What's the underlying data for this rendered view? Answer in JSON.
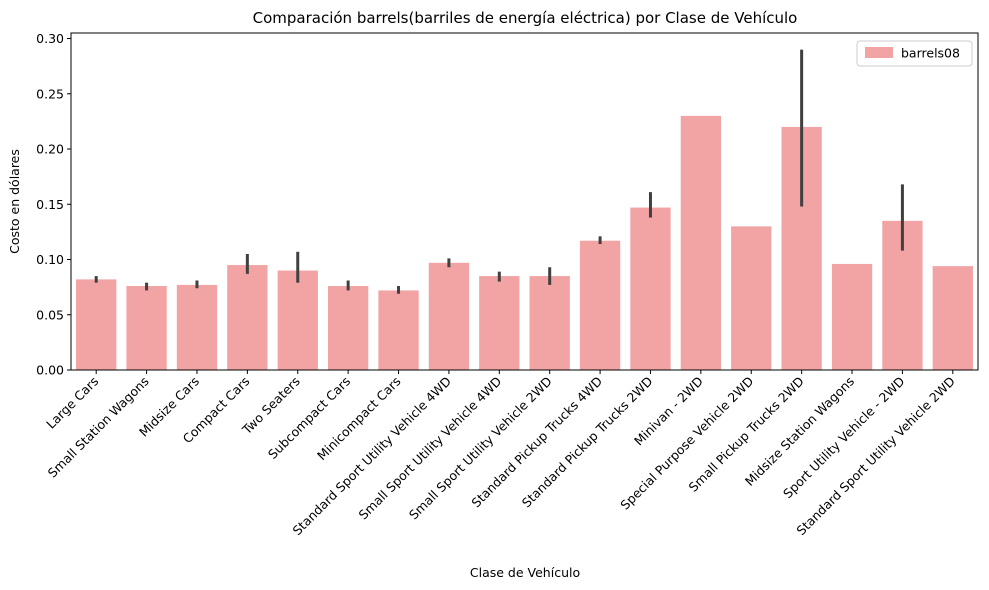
{
  "chart_data": {
    "type": "bar",
    "title": "Comparación barrels(barriles de energía eléctrica) por Clase de Vehículo",
    "xlabel": "Clase de Vehículo",
    "ylabel": "Costo en dólares",
    "ylim": [
      0,
      0.305
    ],
    "yticks": [
      "0.00",
      "0.05",
      "0.10",
      "0.15",
      "0.20",
      "0.25",
      "0.30"
    ],
    "ytick_values": [
      0,
      0.05,
      0.1,
      0.15,
      0.2,
      0.25,
      0.3
    ],
    "legend": "barrels08",
    "legend_position": "top-right",
    "bar_color": "#f2a3a3",
    "error_color": "#404040",
    "categories": [
      "Large Cars",
      "Small Station Wagons",
      "Midsize Cars",
      "Compact Cars",
      "Two Seaters",
      "Subcompact Cars",
      "Minicompact Cars",
      "Standard Sport Utility Vehicle 4WD",
      "Small Sport Utility Vehicle 4WD",
      "Small Sport Utility Vehicle 2WD",
      "Standard Pickup Trucks 4WD",
      "Standard Pickup Trucks 2WD",
      "Minivan - 2WD",
      "Special Purpose Vehicle 2WD",
      "Small Pickup Trucks 2WD",
      "Midsize Station Wagons",
      "Sport Utility Vehicle - 2WD",
      "Standard Sport Utility Vehicle 2WD"
    ],
    "values": [
      0.082,
      0.076,
      0.077,
      0.095,
      0.09,
      0.076,
      0.072,
      0.097,
      0.085,
      0.085,
      0.117,
      0.147,
      0.23,
      0.13,
      0.22,
      0.096,
      0.135,
      0.094
    ],
    "error_low": [
      0.079,
      0.072,
      0.074,
      0.087,
      0.079,
      0.072,
      0.069,
      0.093,
      0.08,
      0.077,
      0.114,
      0.138,
      null,
      null,
      0.148,
      null,
      0.108,
      null
    ],
    "error_high": [
      0.085,
      0.079,
      0.081,
      0.105,
      0.107,
      0.081,
      0.076,
      0.101,
      0.089,
      0.093,
      0.121,
      0.161,
      null,
      null,
      0.29,
      null,
      0.168,
      null
    ]
  }
}
